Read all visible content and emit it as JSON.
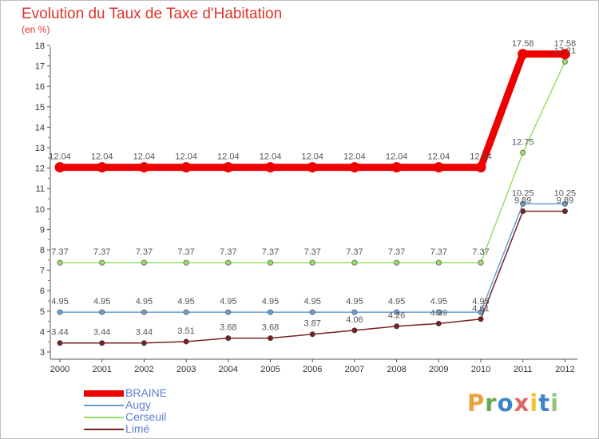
{
  "chart_data": {
    "type": "line",
    "title": "Evolution du Taux de Taxe d'Habitation",
    "subtitle": "(en %)",
    "xlabel": "",
    "ylabel": "",
    "ylim": [
      3,
      18
    ],
    "yticks": [
      "3",
      "4",
      "5",
      "6",
      "7",
      "8",
      "9",
      "10",
      "11",
      "12",
      "13",
      "14",
      "15",
      "16",
      "17",
      "18"
    ],
    "categories": [
      "2000",
      "2001",
      "2002",
      "2003",
      "2004",
      "2005",
      "2006",
      "2007",
      "2008",
      "2009",
      "2010",
      "2011",
      "2012"
    ],
    "series": [
      {
        "name": "BRAINE",
        "color": "#ee0000",
        "values": [
          12.04,
          12.04,
          12.04,
          12.04,
          12.04,
          12.04,
          12.04,
          12.04,
          12.04,
          12.04,
          12.04,
          17.58,
          17.58
        ],
        "labels": [
          "12.04",
          "12.04",
          "12.04",
          "12.04",
          "12.04",
          "12.04",
          "12.04",
          "12.04",
          "12.04",
          "12.04",
          "12.04",
          "17.58",
          "17.58"
        ]
      },
      {
        "name": "Augy",
        "color": "#6a9fce",
        "values": [
          4.95,
          4.95,
          4.95,
          4.95,
          4.95,
          4.95,
          4.95,
          4.95,
          4.95,
          4.95,
          4.95,
          10.25,
          10.25
        ],
        "labels": [
          "4.95",
          "4.95",
          "4.95",
          "4.95",
          "4.95",
          "4.95",
          "4.95",
          "4.95",
          "4.95",
          "4.95",
          "4.95",
          "10.25",
          "10.25"
        ]
      },
      {
        "name": "Cerseuil",
        "color": "#99dd66",
        "values": [
          7.37,
          7.37,
          7.37,
          7.37,
          7.37,
          7.37,
          7.37,
          7.37,
          7.37,
          7.37,
          7.37,
          12.75,
          17.21
        ],
        "labels": [
          "7.37",
          "7.37",
          "7.37",
          "7.37",
          "7.37",
          "7.37",
          "7.37",
          "7.37",
          "7.37",
          "7.37",
          "7.37",
          "12.75",
          "17.21"
        ]
      },
      {
        "name": "Limé",
        "color": "#772222",
        "values": [
          3.44,
          3.44,
          3.44,
          3.51,
          3.68,
          3.68,
          3.87,
          4.06,
          4.26,
          4.39,
          4.61,
          9.89,
          9.89
        ],
        "labels": [
          "3.44",
          "3.44",
          "3.44",
          "3.51",
          "3.68",
          "3.68",
          "3.87",
          "4.06",
          "4.26",
          "4.39",
          "4.61",
          "9.89",
          "9.89"
        ]
      }
    ],
    "legend_position": "bottom-left",
    "grid": false
  },
  "logo": {
    "letters": [
      "P",
      "r",
      "o",
      "x",
      "i",
      "t",
      "i"
    ],
    "colors": [
      "#e9a23b",
      "#6aa84f",
      "#3d85c6",
      "#e06666",
      "#f1c232",
      "#3d85c6",
      "#93c47d"
    ]
  }
}
